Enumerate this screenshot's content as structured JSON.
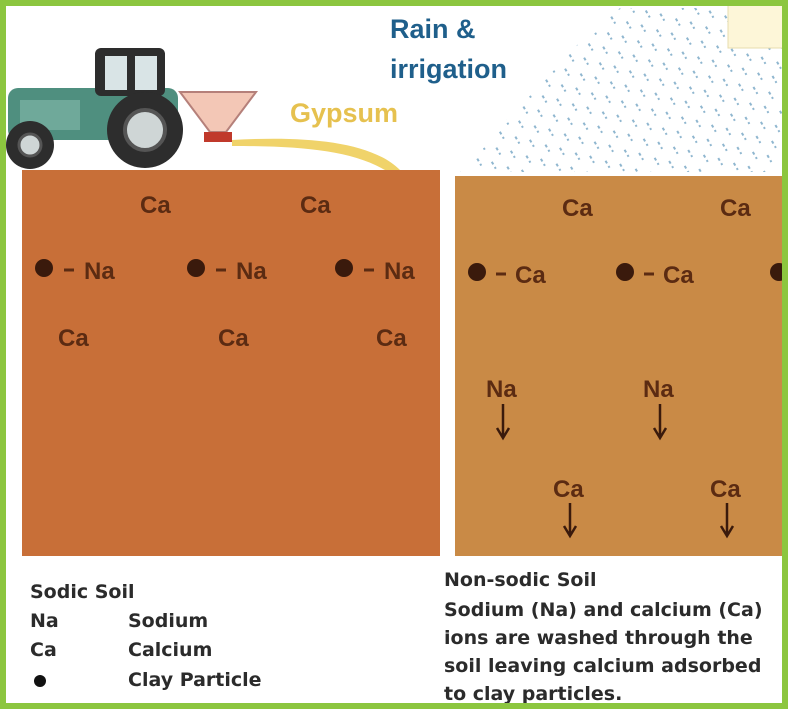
{
  "header": {
    "rain_label": [
      "Rain &",
      "irrigation"
    ],
    "gypsum_label": "Gypsum"
  },
  "sodic_panel": {
    "top_ions": [
      "Ca",
      "Ca"
    ],
    "particle_ions": [
      "Na",
      "Na",
      "Na"
    ],
    "bottom_ions": [
      "Ca",
      "Ca",
      "Ca"
    ]
  },
  "non_sodic_panel": {
    "top_ions": [
      "Ca",
      "Ca"
    ],
    "particle_ions": [
      "Ca",
      "Ca"
    ],
    "leached_sodium": [
      "Na",
      "Na"
    ],
    "leached_calcium": [
      "Ca",
      "Ca"
    ]
  },
  "legend": {
    "title": "Sodic Soil",
    "rows": [
      [
        "Na",
        "Sodium"
      ],
      [
        "Ca",
        "Calcium"
      ],
      [
        "Clay Particle"
      ]
    ]
  },
  "caption": {
    "title": "Non-sodic Soil",
    "lines": [
      "Sodium (Na) and calcium (Ca)",
      "ions are washed through the",
      "soil leaving calcium adsorbed",
      "to clay particles."
    ]
  }
}
